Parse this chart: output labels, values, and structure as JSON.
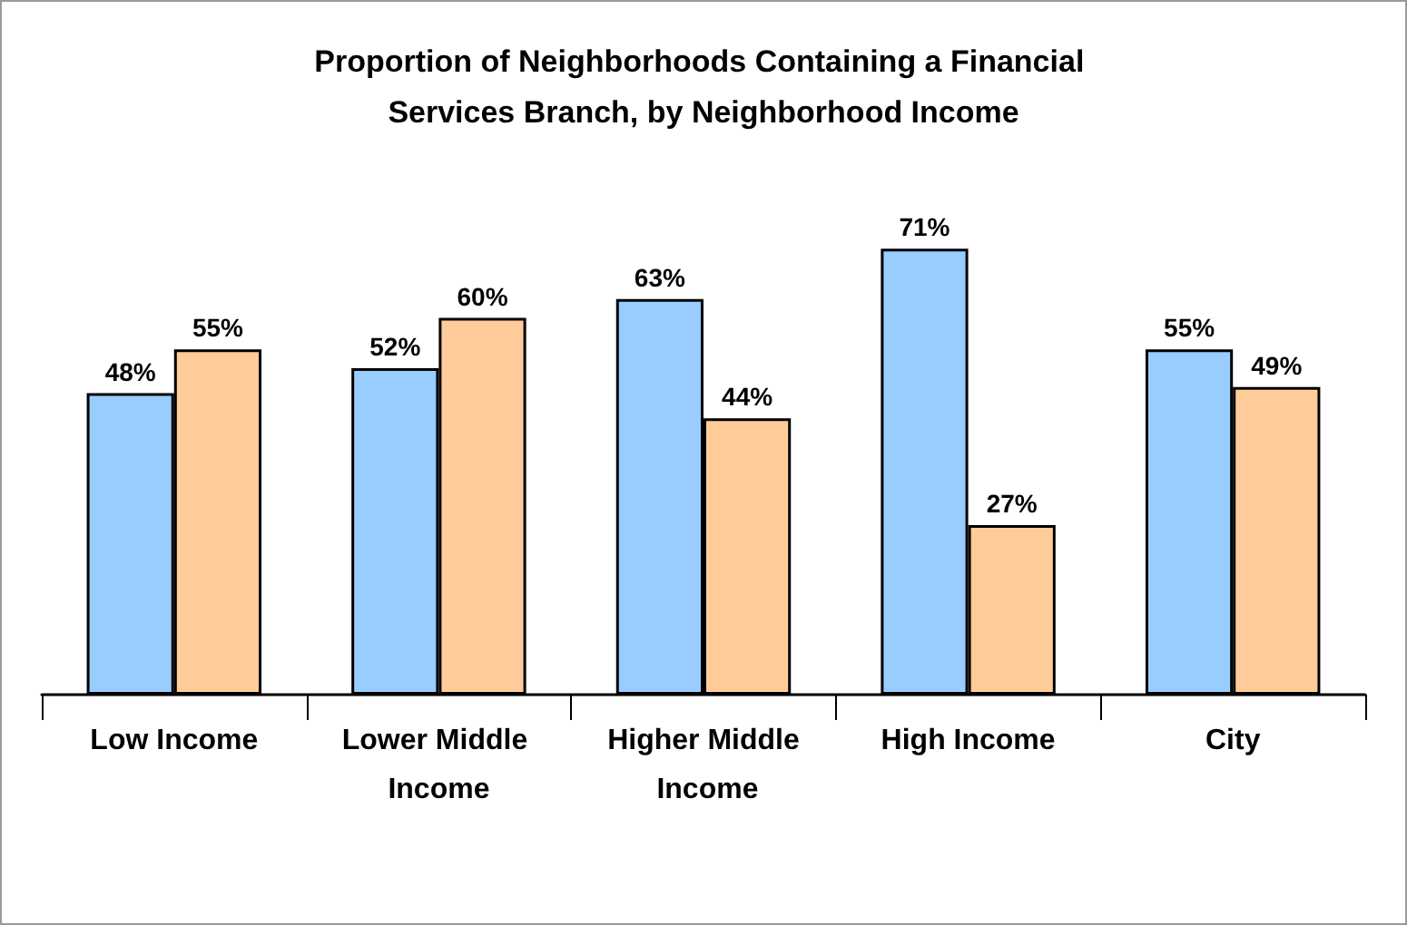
{
  "chart_data": {
    "type": "bar",
    "title": "Proportion of Neighborhoods Containing a Financial Services Branch, by Neighborhood Income",
    "categories": [
      "Low Income",
      "Lower Middle Income",
      "Higher Middle Income",
      "High Income",
      "City"
    ],
    "series": [
      {
        "color": "#99ccff",
        "values": [
          48,
          52,
          63,
          71,
          55
        ],
        "value_labels": [
          "48%",
          "52%",
          "63%",
          "71%",
          "55%"
        ]
      },
      {
        "color": "#ffcc99",
        "values": [
          55,
          60,
          44,
          27,
          49
        ],
        "value_labels": [
          "55%",
          "60%",
          "44%",
          "27%",
          "49%"
        ]
      }
    ],
    "grid": false
  }
}
